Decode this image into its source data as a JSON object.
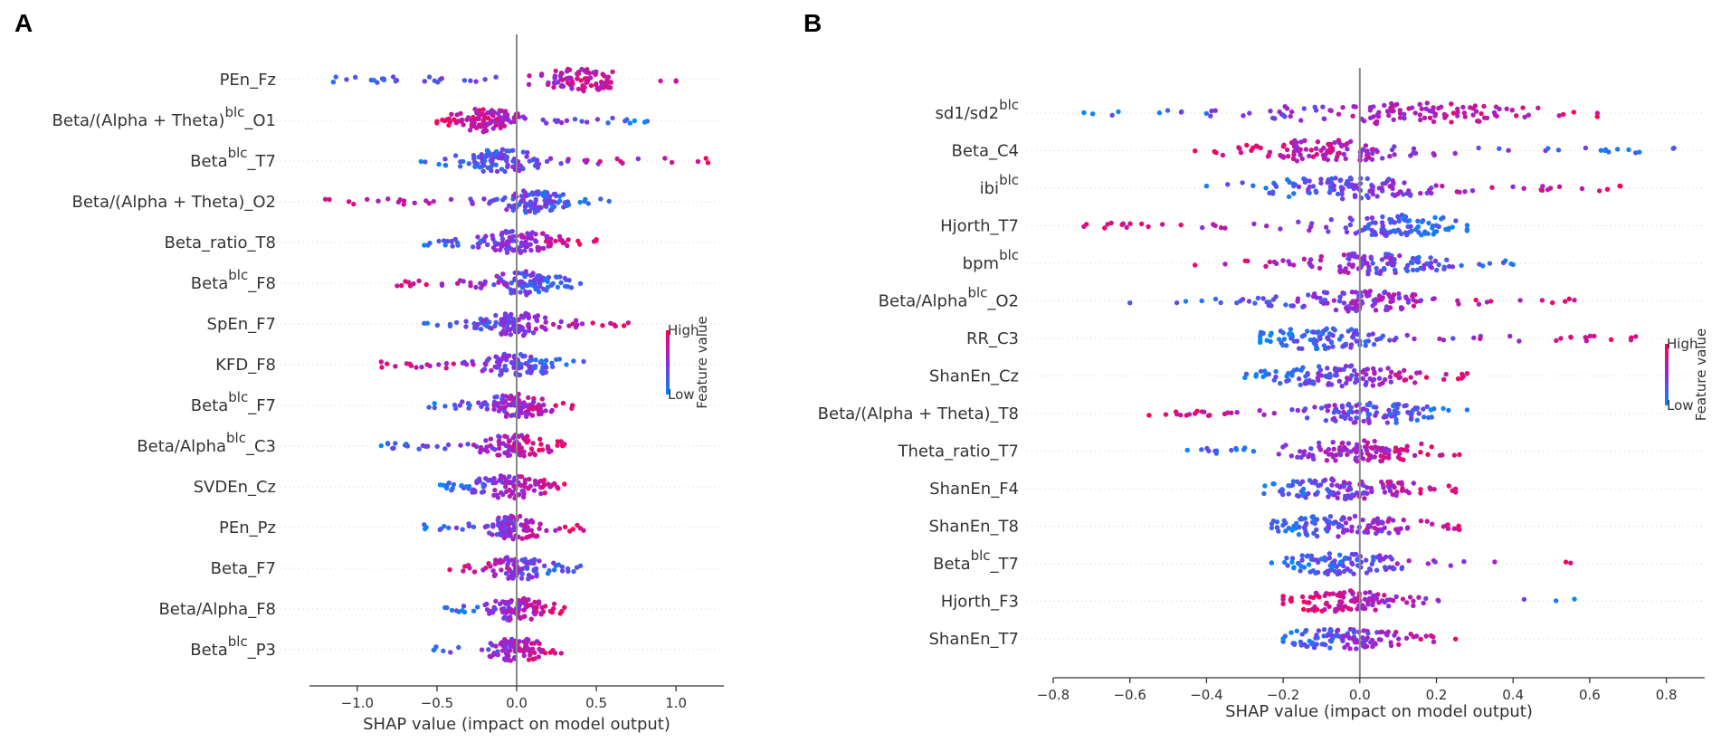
{
  "chart_data": [
    {
      "panel": "A",
      "type": "scatter",
      "subtype": "shap-beeswarm",
      "xlabel": "SHAP value (impact on model output)",
      "xlim": [
        -1.3,
        1.3
      ],
      "xticks": [
        -1.0,
        -0.5,
        0.0,
        0.5,
        1.0
      ],
      "xtick_labels": [
        "−1.0",
        "−0.5",
        "0.0",
        "0.5",
        "1.0"
      ],
      "colorbar": {
        "high": "High",
        "low": "Low",
        "title": "Feature value",
        "high_color": "#ff0052",
        "low_color": "#008bfb"
      },
      "features": [
        {
          "base": "PEn_Fz",
          "suffix": "",
          "min": -1.15,
          "max": 1.0,
          "center": 0.4,
          "spread": 0.22,
          "skew": 0.85,
          "n": 120
        },
        {
          "base": "Beta/(Alpha + Theta)",
          "sup": "blc",
          "suffix": "_O1",
          "min": -0.5,
          "max": 0.82,
          "center": -0.2,
          "spread": 0.18,
          "skew": 0.15,
          "n": 120
        },
        {
          "base": "Beta",
          "sup": "blc",
          "suffix": "_T7",
          "min": -0.6,
          "max": 1.2,
          "center": -0.1,
          "spread": 0.2,
          "skew": 0.8,
          "n": 120
        },
        {
          "base": "Beta/(Alpha + Theta)_O2",
          "suffix": "",
          "min": -1.2,
          "max": 0.58,
          "center": 0.1,
          "spread": 0.18,
          "skew": 0.25,
          "n": 120
        },
        {
          "base": "Beta_ratio_T8",
          "suffix": "",
          "min": -0.58,
          "max": 0.5,
          "center": 0.0,
          "spread": 0.22,
          "skew": 0.6,
          "n": 120
        },
        {
          "base": "Beta",
          "sup": "blc",
          "suffix": "_F8",
          "min": -0.75,
          "max": 0.4,
          "center": 0.05,
          "spread": 0.2,
          "skew": 0.35,
          "n": 110
        },
        {
          "base": "SpEn_F7",
          "suffix": "",
          "min": -0.58,
          "max": 0.7,
          "center": 0.0,
          "spread": 0.2,
          "skew": 0.65,
          "n": 120
        },
        {
          "base": "KFD_F8",
          "suffix": "",
          "min": -0.85,
          "max": 0.42,
          "center": 0.0,
          "spread": 0.2,
          "skew": 0.35,
          "n": 110
        },
        {
          "base": "Beta",
          "sup": "blc",
          "suffix": "_F7",
          "min": -0.55,
          "max": 0.35,
          "center": 0.0,
          "spread": 0.18,
          "skew": 0.5,
          "n": 110
        },
        {
          "base": "Beta/Alpha",
          "sup": "blc",
          "suffix": "_C3",
          "min": -0.85,
          "max": 0.3,
          "center": 0.0,
          "spread": 0.18,
          "skew": 0.5,
          "n": 110
        },
        {
          "base": "SVDEn_Cz",
          "suffix": "",
          "min": -0.48,
          "max": 0.3,
          "center": -0.05,
          "spread": 0.2,
          "skew": 0.7,
          "n": 110
        },
        {
          "base": "PEn_Pz",
          "suffix": "",
          "min": -0.58,
          "max": 0.42,
          "center": 0.0,
          "spread": 0.18,
          "skew": 0.7,
          "n": 110
        },
        {
          "base": "Beta_F7",
          "suffix": "",
          "min": -0.42,
          "max": 0.4,
          "center": 0.0,
          "spread": 0.16,
          "skew": 0.3,
          "n": 110
        },
        {
          "base": "Beta/Alpha_F8",
          "suffix": "",
          "min": -0.45,
          "max": 0.3,
          "center": 0.0,
          "spread": 0.16,
          "skew": 0.6,
          "n": 110
        },
        {
          "base": "Beta",
          "sup": "blc",
          "suffix": "_P3",
          "min": -0.52,
          "max": 0.28,
          "center": 0.0,
          "spread": 0.14,
          "skew": 0.6,
          "n": 100
        }
      ]
    },
    {
      "panel": "B",
      "type": "scatter",
      "subtype": "shap-beeswarm",
      "xlabel": "SHAP value (impact on model output)",
      "xlim": [
        -0.8,
        0.9
      ],
      "xticks": [
        -0.8,
        -0.6,
        -0.4,
        -0.2,
        0.0,
        0.2,
        0.4,
        0.6,
        0.8
      ],
      "xtick_labels": [
        "−0.8",
        "−0.6",
        "−0.4",
        "−0.2",
        "0.0",
        "0.2",
        "0.4",
        "0.6",
        "0.8"
      ],
      "colorbar": {
        "high": "High",
        "low": "Low",
        "title": "Feature value",
        "high_color": "#ff0052",
        "low_color": "#008bfb"
      },
      "features": [
        {
          "base": "sd1/sd2",
          "sup": "blc",
          "suffix": "",
          "min": -0.72,
          "max": 0.62,
          "center": 0.1,
          "spread": 0.3,
          "skew": 0.8,
          "n": 130
        },
        {
          "base": "Beta_C4",
          "suffix": "",
          "min": -0.43,
          "max": 0.82,
          "center": -0.1,
          "spread": 0.2,
          "skew": 0.3,
          "n": 130
        },
        {
          "base": "ibi",
          "sup": "blc",
          "suffix": "",
          "min": -0.4,
          "max": 0.68,
          "center": -0.05,
          "spread": 0.2,
          "skew": 0.75,
          "n": 130
        },
        {
          "base": "Hjorth_T7",
          "suffix": "",
          "min": -0.72,
          "max": 0.28,
          "center": 0.1,
          "spread": 0.15,
          "skew": 0.35,
          "n": 120
        },
        {
          "base": "bpm",
          "sup": "blc",
          "suffix": "",
          "min": -0.43,
          "max": 0.4,
          "center": 0.05,
          "spread": 0.16,
          "skew": 0.4,
          "n": 120
        },
        {
          "base": "Beta/Alpha",
          "sup": "blc",
          "suffix": "_O2",
          "min": -0.6,
          "max": 0.56,
          "center": 0.0,
          "spread": 0.15,
          "skew": 0.6,
          "n": 130
        },
        {
          "base": "RR_C3",
          "suffix": "",
          "min": -0.26,
          "max": 0.72,
          "center": -0.1,
          "spread": 0.14,
          "skew": 0.75,
          "n": 120
        },
        {
          "base": "ShanEn_Cz",
          "suffix": "",
          "min": -0.3,
          "max": 0.28,
          "center": -0.05,
          "spread": 0.18,
          "skew": 0.55,
          "n": 120
        },
        {
          "base": "Beta/(Alpha + Theta)_T8",
          "suffix": "",
          "min": -0.55,
          "max": 0.28,
          "center": 0.05,
          "spread": 0.14,
          "skew": 0.45,
          "n": 120
        },
        {
          "base": "Theta_ratio_T7",
          "suffix": "",
          "min": -0.45,
          "max": 0.26,
          "center": 0.0,
          "spread": 0.16,
          "skew": 0.55,
          "n": 120
        },
        {
          "base": "ShanEn_F4",
          "suffix": "",
          "min": -0.25,
          "max": 0.25,
          "center": -0.05,
          "spread": 0.16,
          "skew": 0.55,
          "n": 120
        },
        {
          "base": "ShanEn_T8",
          "suffix": "",
          "min": -0.23,
          "max": 0.26,
          "center": -0.05,
          "spread": 0.16,
          "skew": 0.55,
          "n": 120
        },
        {
          "base": "Beta",
          "sup": "blc",
          "suffix": "_T7",
          "min": -0.23,
          "max": 0.55,
          "center": -0.05,
          "spread": 0.12,
          "skew": 0.6,
          "n": 110
        },
        {
          "base": "Hjorth_F3",
          "suffix": "",
          "min": -0.2,
          "max": 0.56,
          "center": -0.05,
          "spread": 0.12,
          "skew": 0.45,
          "n": 110
        },
        {
          "base": "ShanEn_T7",
          "suffix": "",
          "min": -0.2,
          "max": 0.25,
          "center": -0.05,
          "spread": 0.12,
          "skew": 0.65,
          "n": 110
        }
      ]
    }
  ]
}
